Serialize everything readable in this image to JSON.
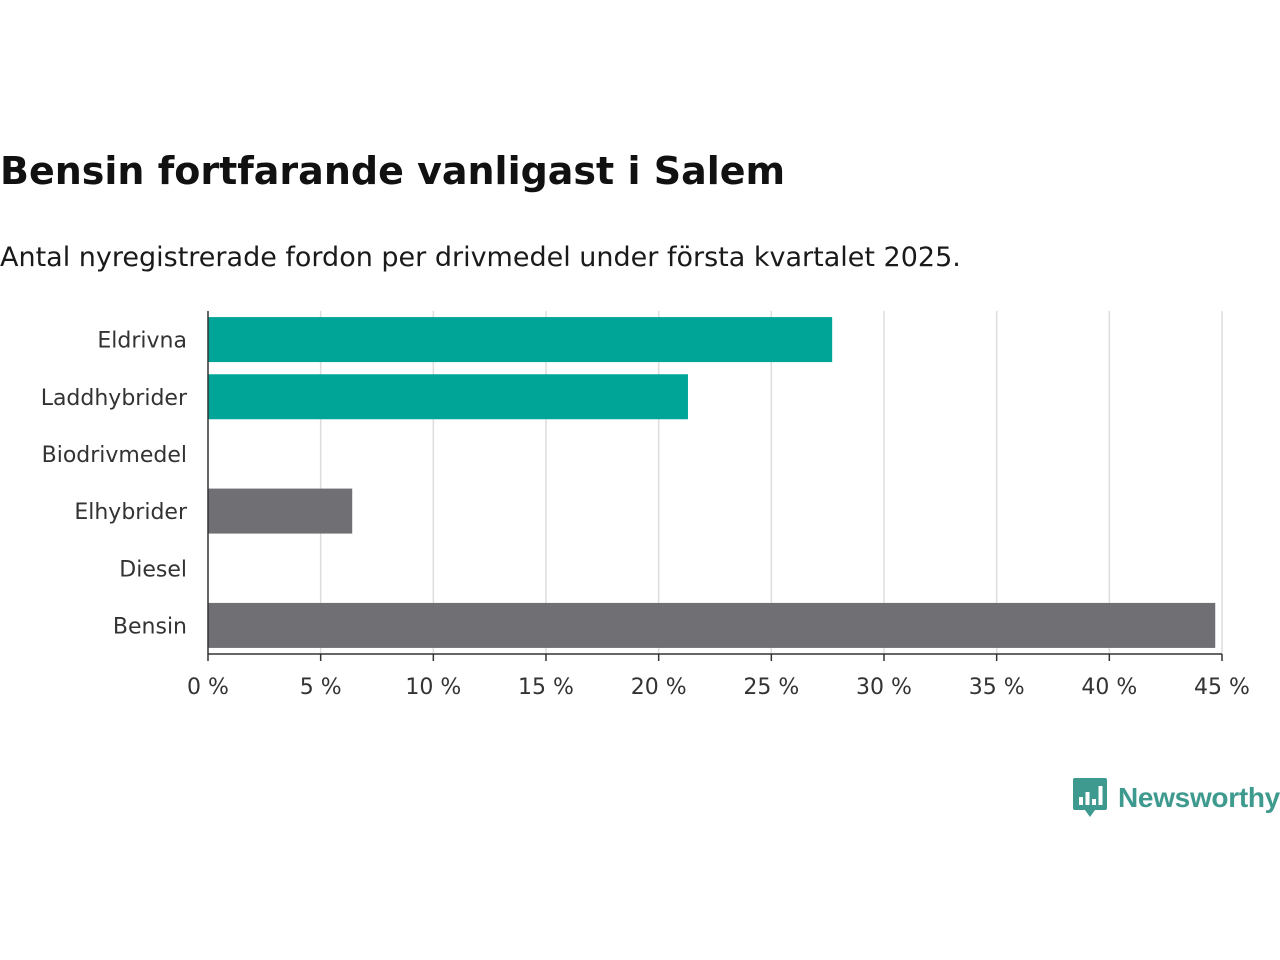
{
  "header": {
    "title": "Bensin fortfarande vanligast i Salem",
    "subtitle": "Antal nyregistrerade fordon per drivmedel under första kvartalet 2025."
  },
  "brand": {
    "name": "Newsworthy",
    "icon": "newsworthy-logo-icon",
    "color": "#3e9a8e"
  },
  "chart_data": {
    "type": "bar",
    "orientation": "horizontal",
    "title": "Bensin fortfarande vanligast i Salem",
    "subtitle": "Antal nyregistrerade fordon per drivmedel under första kvartalet 2025.",
    "categories": [
      "Eldrivna",
      "Laddhybrider",
      "Biodrivmedel",
      "Elhybrider",
      "Diesel",
      "Bensin"
    ],
    "values": [
      27.7,
      21.3,
      0,
      6.4,
      0,
      44.7
    ],
    "colors": [
      "#00a598",
      "#00a598",
      "#00a598",
      "#706f74",
      "#706f74",
      "#706f74"
    ],
    "xlim": [
      0,
      45
    ],
    "xticks": [
      0,
      5,
      10,
      15,
      20,
      25,
      30,
      35,
      40,
      45
    ],
    "tick_labels": [
      "0 %",
      "5 %",
      "10 %",
      "15 %",
      "20 %",
      "25 %",
      "30 %",
      "35 %",
      "40 %",
      "45 %"
    ],
    "xlabel": "",
    "ylabel": "",
    "grid": true
  }
}
